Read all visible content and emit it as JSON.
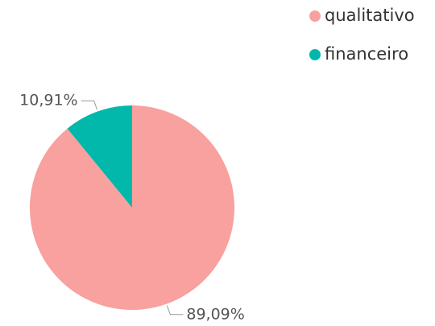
{
  "chart_data": {
    "type": "pie",
    "categories": [
      "qualitativo",
      "financeiro"
    ],
    "values": [
      89.09,
      10.91
    ],
    "value_labels": [
      "89,09%",
      "10,91%"
    ],
    "colors": [
      "#f8a19f",
      "#01b8aa"
    ],
    "legend": "top-right"
  }
}
